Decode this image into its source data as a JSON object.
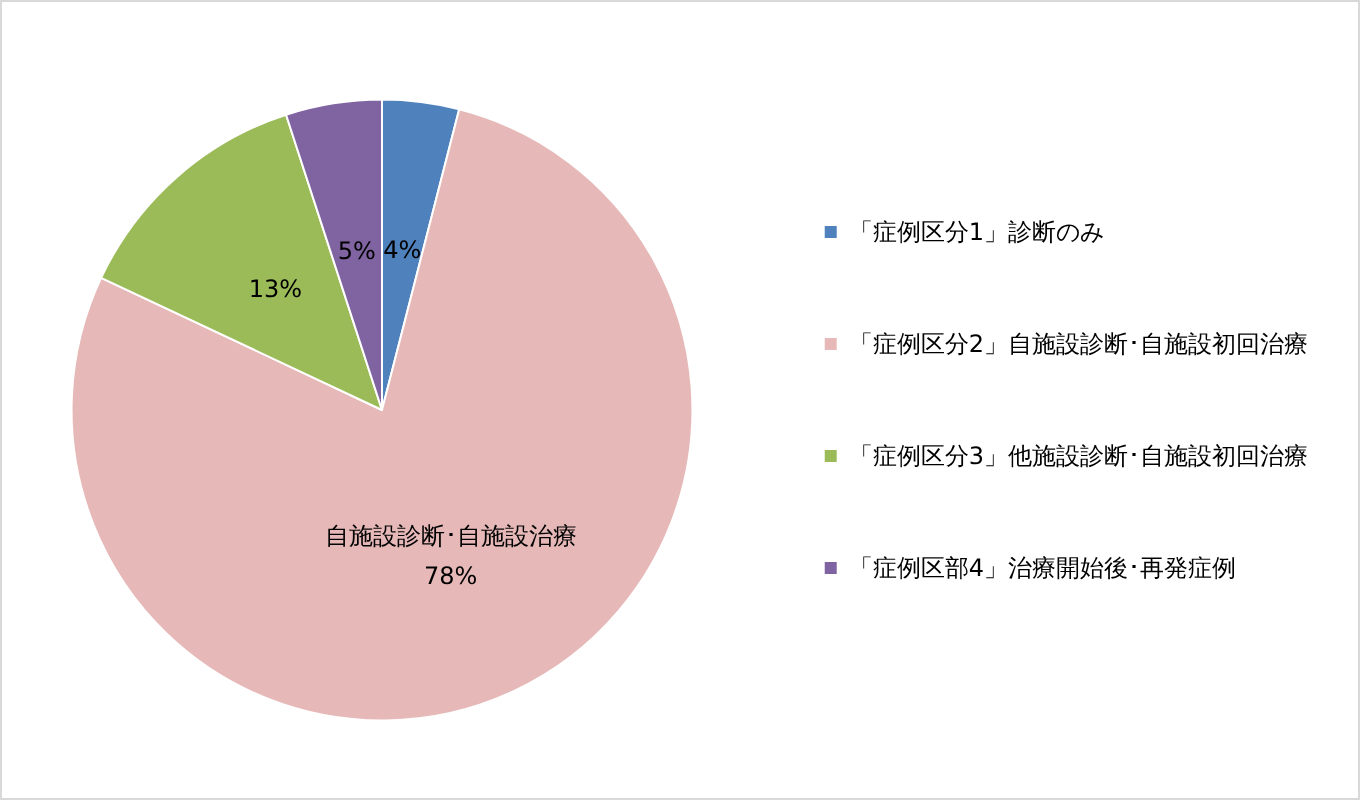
{
  "chart_data": {
    "type": "pie",
    "categories": [
      "「症例区分1」診断のみ",
      "「症例区分2」自施設診断･自施設初回治療",
      "「症例区分3」他施設診断･自施設初回治療",
      "「症例区部4」治療開始後･再発症例"
    ],
    "values": [
      4,
      78,
      13,
      5
    ],
    "colors": [
      "#4f81bd",
      "#e6b9b8",
      "#9bbb59",
      "#8064a2"
    ],
    "value_labels": [
      "4%",
      "自施設診断･自施設治療\n78%",
      "13%",
      "5%"
    ],
    "legend": "right"
  }
}
